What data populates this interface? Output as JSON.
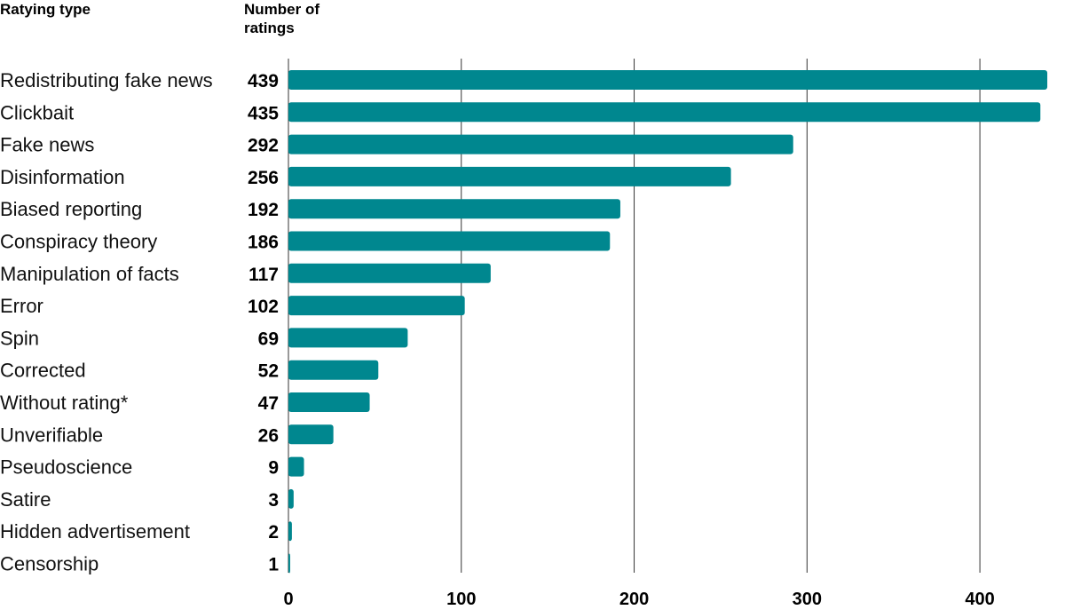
{
  "headers": {
    "rating_type": "Ratying type",
    "count": "Number of ratings"
  },
  "colors": {
    "bar": "#00878f",
    "grid": "#333333"
  },
  "chart_data": {
    "type": "bar",
    "orientation": "horizontal",
    "categories": [
      "Redistributing fake news",
      "Clickbait",
      "Fake news",
      "Disinformation",
      "Biased reporting",
      "Conspiracy theory",
      "Manipulation of facts",
      "Error",
      "Spin",
      "Corrected",
      "Without rating*",
      "Unverifiable",
      "Pseudoscience",
      "Satire",
      "Hidden advertisement",
      "Censorship"
    ],
    "values": [
      439,
      435,
      292,
      256,
      192,
      186,
      117,
      102,
      69,
      52,
      47,
      26,
      9,
      3,
      2,
      1
    ],
    "xlim": [
      0,
      440
    ],
    "xticks": [
      0,
      100,
      200,
      300,
      400
    ],
    "grid": true
  }
}
